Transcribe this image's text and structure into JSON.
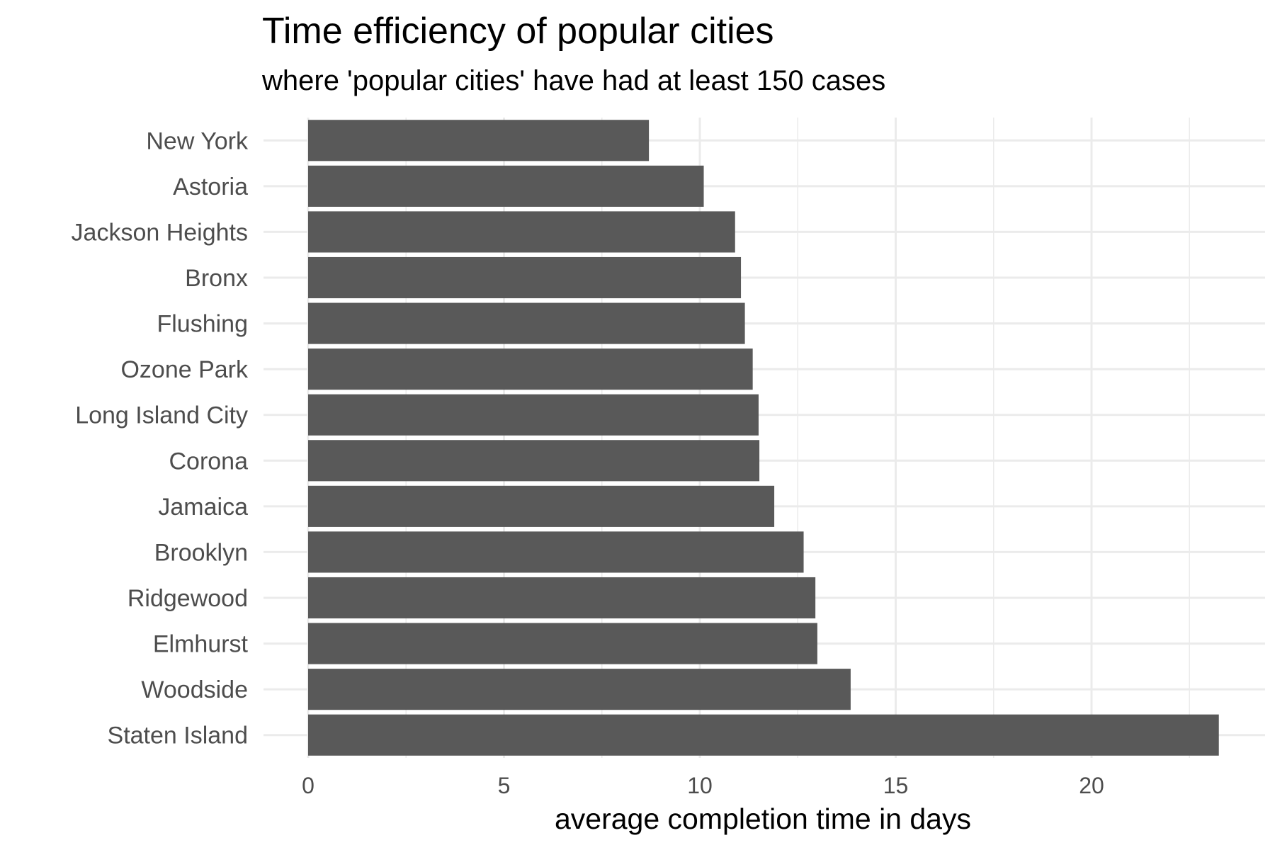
{
  "chart_data": {
    "type": "bar",
    "orientation": "horizontal",
    "title": "Time efficiency of popular cities",
    "subtitle": "where 'popular cities' have had at least 150 cases",
    "xlabel": "average completion time in days",
    "ylabel": "",
    "categories": [
      "New York",
      "Astoria",
      "Jackson Heights",
      "Bronx",
      "Flushing",
      "Ozone Park",
      "Long Island City",
      "Corona",
      "Jamaica",
      "Brooklyn",
      "Ridgewood",
      "Elmhurst",
      "Woodside",
      "Staten Island"
    ],
    "values": [
      8.7,
      10.1,
      10.9,
      11.05,
      11.15,
      11.35,
      11.5,
      11.52,
      11.9,
      12.65,
      12.95,
      13.0,
      13.85,
      23.25
    ],
    "xlim": [
      0,
      24.1
    ],
    "x_ticks": [
      "0",
      "5",
      "10",
      "15",
      "20"
    ],
    "x_tick_values": [
      0,
      5,
      10,
      15,
      20
    ],
    "x_minor_ticks": [
      2.5,
      7.5,
      12.5,
      17.5,
      22.5
    ],
    "bar_color": "#595959",
    "grid_color": "#ebebeb",
    "grid": true,
    "legend": "none"
  }
}
